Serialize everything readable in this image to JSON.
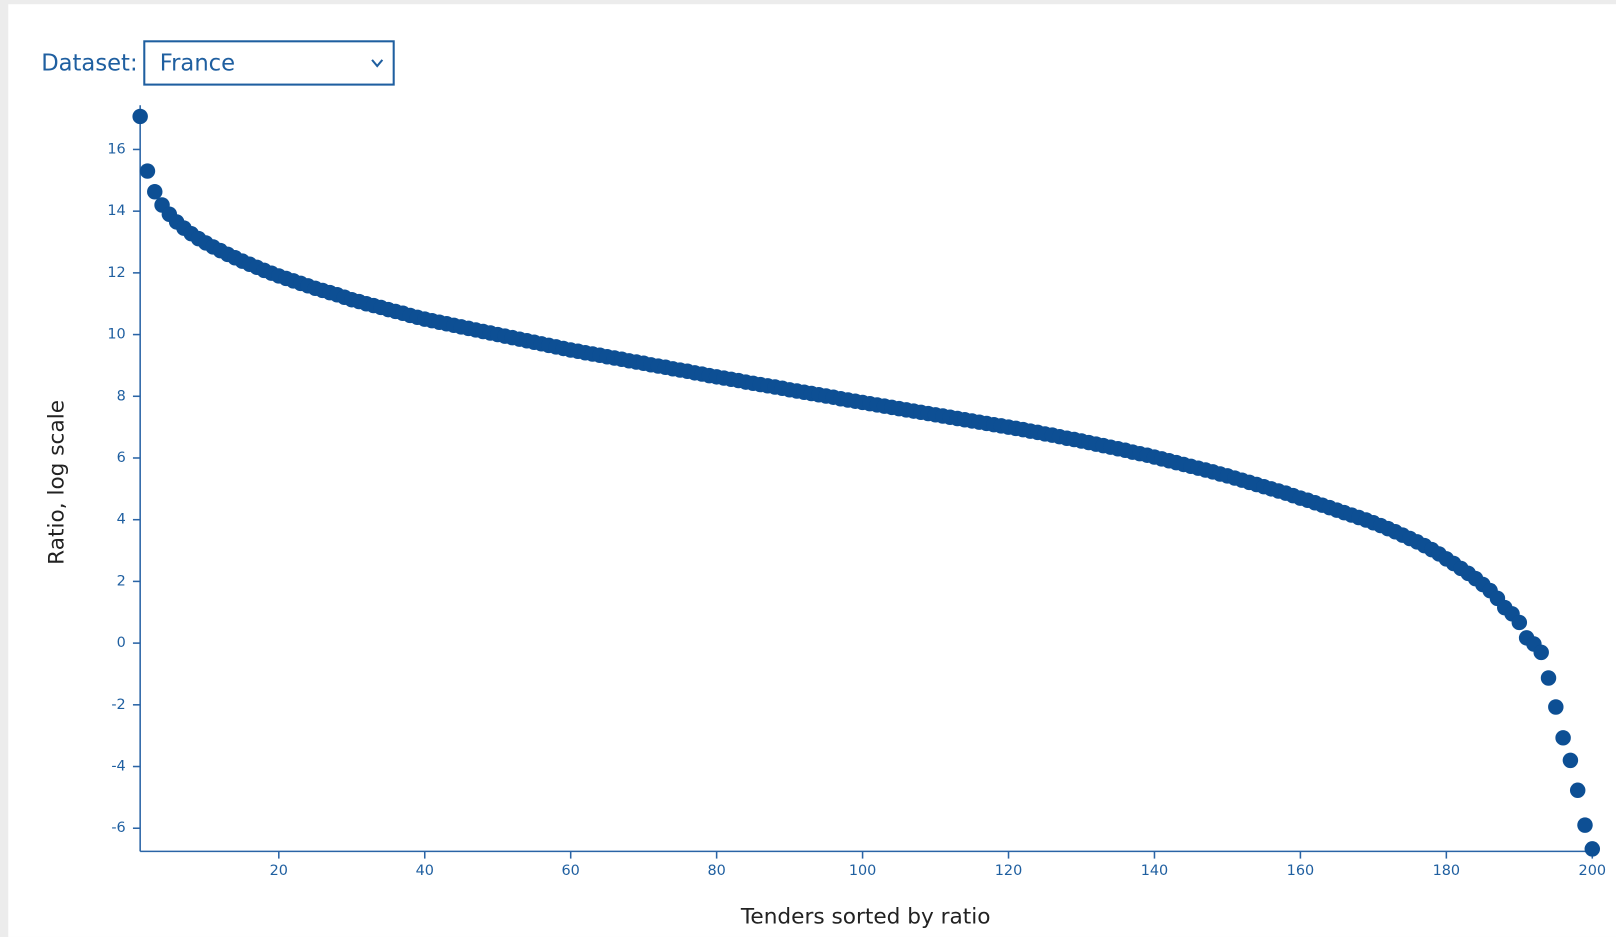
{
  "dataset_label": "Dataset:",
  "dataset_value": "France",
  "chart_data": {
    "type": "scatter",
    "xlabel": "Tenders sorted by ratio",
    "ylabel": "Ratio, log scale",
    "color": "#0d4f94",
    "x": [
      1,
      2,
      3,
      4,
      5,
      6,
      7,
      8,
      9,
      10,
      11,
      12,
      13,
      14,
      15,
      16,
      17,
      18,
      19,
      20,
      21,
      22,
      23,
      24,
      25,
      26,
      27,
      28,
      29,
      30,
      31,
      32,
      33,
      34,
      35,
      36,
      37,
      38,
      39,
      40,
      41,
      42,
      43,
      44,
      45,
      46,
      47,
      48,
      49,
      50,
      51,
      52,
      53,
      54,
      55,
      56,
      57,
      58,
      59,
      60,
      61,
      62,
      63,
      64,
      65,
      66,
      67,
      68,
      69,
      70,
      71,
      72,
      73,
      74,
      75,
      76,
      77,
      78,
      79,
      80,
      81,
      82,
      83,
      84,
      85,
      86,
      87,
      88,
      89,
      90,
      91,
      92,
      93,
      94,
      95,
      96,
      97,
      98,
      99,
      100,
      101,
      102,
      103,
      104,
      105,
      106,
      107,
      108,
      109,
      110,
      111,
      112,
      113,
      114,
      115,
      116,
      117,
      118,
      119,
      120,
      121,
      122,
      123,
      124,
      125,
      126,
      127,
      128,
      129,
      130,
      131,
      132,
      133,
      134,
      135,
      136,
      137,
      138,
      139,
      140,
      141,
      142,
      143,
      144,
      145,
      146,
      147,
      148,
      149,
      150,
      151,
      152,
      153,
      154,
      155,
      156,
      157,
      158,
      159,
      160,
      161,
      162,
      163,
      164,
      165,
      166,
      167,
      168,
      169,
      170,
      171,
      172,
      173,
      174,
      175,
      176,
      177,
      178,
      179,
      180,
      181,
      182,
      183,
      184,
      185,
      186,
      187,
      188,
      189,
      190,
      191,
      192,
      193,
      194,
      195,
      196,
      197,
      198,
      199,
      200
    ],
    "values": [
      17.07,
      15.3,
      14.63,
      14.2,
      13.9,
      13.65,
      13.45,
      13.27,
      13.11,
      12.97,
      12.84,
      12.72,
      12.6,
      12.49,
      12.38,
      12.28,
      12.18,
      12.08,
      11.99,
      11.9,
      11.82,
      11.74,
      11.66,
      11.58,
      11.5,
      11.43,
      11.36,
      11.29,
      11.21,
      11.13,
      11.07,
      11.0,
      10.94,
      10.88,
      10.81,
      10.75,
      10.69,
      10.62,
      10.56,
      10.5,
      10.45,
      10.4,
      10.35,
      10.3,
      10.25,
      10.2,
      10.15,
      10.1,
      10.05,
      10.0,
      9.95,
      9.9,
      9.85,
      9.8,
      9.75,
      9.7,
      9.65,
      9.6,
      9.55,
      9.5,
      9.46,
      9.41,
      9.37,
      9.33,
      9.28,
      9.24,
      9.2,
      9.15,
      9.11,
      9.07,
      9.02,
      8.98,
      8.94,
      8.89,
      8.85,
      8.81,
      8.76,
      8.72,
      8.67,
      8.63,
      8.59,
      8.55,
      8.51,
      8.46,
      8.42,
      8.38,
      8.34,
      8.3,
      8.26,
      8.21,
      8.17,
      8.13,
      8.09,
      8.05,
      8.01,
      7.97,
      7.92,
      7.88,
      7.84,
      7.8,
      7.76,
      7.72,
      7.68,
      7.64,
      7.6,
      7.56,
      7.52,
      7.48,
      7.44,
      7.4,
      7.36,
      7.32,
      7.28,
      7.24,
      7.2,
      7.16,
      7.12,
      7.08,
      7.04,
      7.0,
      6.96,
      6.92,
      6.87,
      6.83,
      6.78,
      6.74,
      6.69,
      6.64,
      6.6,
      6.55,
      6.5,
      6.45,
      6.4,
      6.35,
      6.3,
      6.25,
      6.19,
      6.14,
      6.09,
      6.03,
      5.97,
      5.91,
      5.85,
      5.79,
      5.73,
      5.67,
      5.61,
      5.55,
      5.48,
      5.42,
      5.35,
      5.28,
      5.21,
      5.14,
      5.07,
      5.0,
      4.93,
      4.86,
      4.78,
      4.7,
      4.63,
      4.55,
      4.47,
      4.39,
      4.31,
      4.23,
      4.15,
      4.07,
      3.99,
      3.9,
      3.81,
      3.71,
      3.61,
      3.5,
      3.39,
      3.28,
      3.16,
      3.03,
      2.89,
      2.73,
      2.58,
      2.42,
      2.26,
      2.09,
      1.9,
      1.7,
      1.45,
      1.15,
      0.95,
      0.67,
      0.17,
      -0.03,
      -0.3,
      -1.13,
      -2.07,
      -3.07,
      -3.8,
      -4.77,
      -5.9,
      -6.67
    ],
    "xlim": [
      1,
      200
    ],
    "ylim": [
      -6.75,
      17.1
    ],
    "xticks": [
      20,
      40,
      60,
      80,
      100,
      120,
      140,
      160,
      180,
      200
    ],
    "yticks": [
      -6,
      -4,
      -2,
      0,
      2,
      4,
      6,
      8,
      10,
      12,
      14,
      16
    ]
  }
}
